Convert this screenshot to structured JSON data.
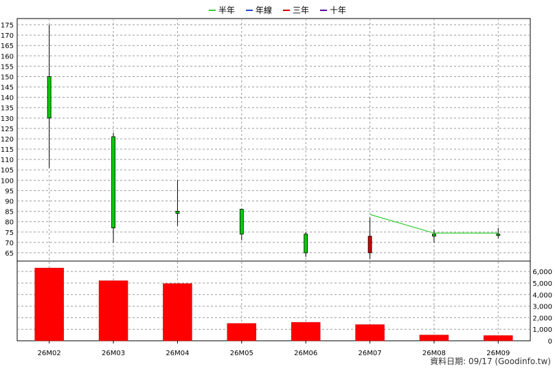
{
  "legend": [
    {
      "label": "半年",
      "color": "#33cc33"
    },
    {
      "label": "年線",
      "color": "#2244cc"
    },
    {
      "label": "三年",
      "color": "#cc0000"
    },
    {
      "label": "十年",
      "color": "#5500aa"
    }
  ],
  "footer": "資料日期: 09/17  (Goodinfo.tw)",
  "chart_data": [
    {
      "type": "candlestick",
      "categories": [
        "26M02",
        "26M03",
        "26M04",
        "26M05",
        "26M06",
        "26M07",
        "26M08",
        "26M09"
      ],
      "ylim": [
        61,
        178
      ],
      "yticks": [
        65,
        70,
        75,
        80,
        85,
        90,
        95,
        100,
        105,
        110,
        115,
        120,
        125,
        130,
        135,
        140,
        145,
        150,
        155,
        160,
        165,
        170,
        175
      ],
      "grid": true,
      "ohlc": [
        {
          "open": 130,
          "high": 175,
          "low": 106,
          "close": 150
        },
        {
          "open": 77,
          "high": 123,
          "low": 70,
          "close": 121
        },
        {
          "open": 84,
          "high": 100,
          "low": 78,
          "close": 85
        },
        {
          "open": 74,
          "high": 86,
          "low": 71,
          "close": 86
        },
        {
          "open": 65,
          "high": 75,
          "low": 63,
          "close": 74
        },
        {
          "open": 73,
          "high": 82,
          "low": 62,
          "close": 65
        },
        {
          "open": 73,
          "high": 76,
          "low": 70,
          "close": 74
        },
        {
          "open": 74,
          "high": 77,
          "low": 72,
          "close": 74
        }
      ],
      "up_color": "#00cc00",
      "down_color": "#cc0000",
      "series": [
        {
          "name": "半年",
          "color": "#33cc33",
          "values": [
            null,
            null,
            null,
            null,
            null,
            83.5,
            74.5,
            74.5
          ]
        }
      ]
    },
    {
      "type": "bar",
      "categories": [
        "26M02",
        "26M03",
        "26M04",
        "26M05",
        "26M06",
        "26M07",
        "26M08",
        "26M09"
      ],
      "values": [
        6300,
        5200,
        4950,
        1500,
        1600,
        1400,
        500,
        450
      ],
      "color": "#ff0000",
      "ylim": [
        0,
        6900
      ],
      "yticks": [
        0,
        1000,
        2000,
        3000,
        4000,
        5000,
        6000
      ],
      "ytick_labels": [
        "0",
        "1,000",
        "2,000",
        "3,000",
        "4,000",
        "5,000",
        "6,000"
      ],
      "grid": true
    }
  ]
}
